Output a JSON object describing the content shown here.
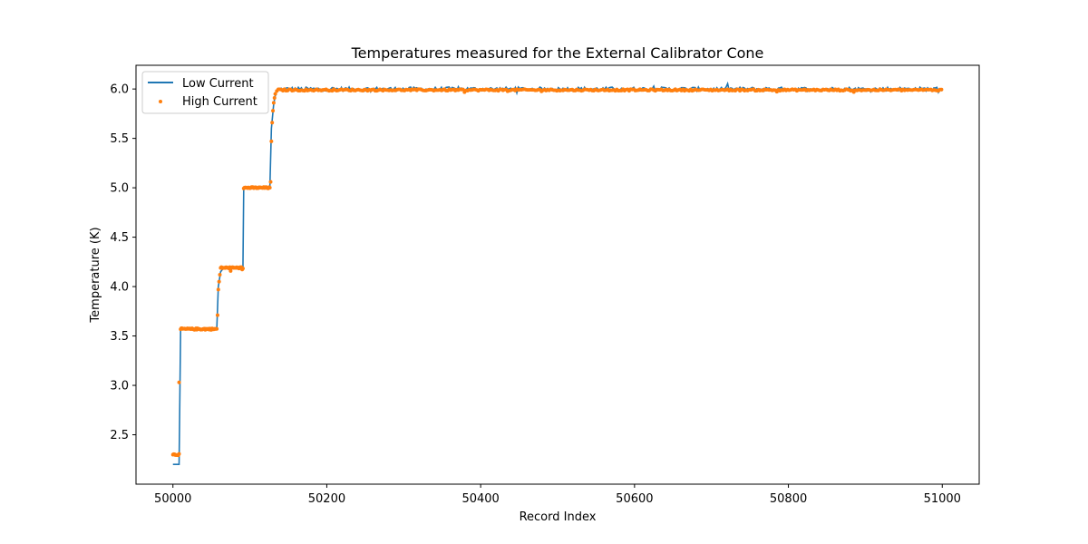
{
  "chart_data": {
    "type": "line",
    "title": "Temperatures measured for the External Calibrator Cone",
    "xlabel": "Record Index",
    "ylabel": "Temperature (K)",
    "xlim": [
      49952,
      51048
    ],
    "ylim": [
      2.0,
      6.24
    ],
    "x_ticks": [
      50000,
      50200,
      50400,
      50600,
      50800,
      51000
    ],
    "y_ticks": [
      2.5,
      3.0,
      3.5,
      4.0,
      4.5,
      5.0,
      5.5,
      6.0
    ],
    "grid": false,
    "legend_position": "upper-left",
    "series": [
      {
        "name": "Low Current",
        "kind": "line",
        "color": "#1f77b4",
        "segments": [
          {
            "x_start": 50000,
            "x_end": 50008,
            "value": 2.2
          },
          {
            "x_start": 50010,
            "x_end": 50057,
            "value": 3.57
          },
          {
            "x_start": 50060,
            "x_end": 50091,
            "value": 4.19
          },
          {
            "x_start": 50092,
            "x_end": 50126,
            "value": 5.0
          },
          {
            "x_start": 50136,
            "x_end": 51000,
            "value": 6.0
          }
        ],
        "points": [
          [
            50000,
            2.2
          ],
          [
            50008,
            2.2
          ],
          [
            50010,
            3.57
          ],
          [
            50057,
            3.57
          ],
          [
            50059,
            4.0
          ],
          [
            50062,
            4.15
          ],
          [
            50066,
            4.19
          ],
          [
            50091,
            4.19
          ],
          [
            50092,
            4.99
          ],
          [
            50126,
            5.0
          ],
          [
            50128,
            5.6
          ],
          [
            50131,
            5.85
          ],
          [
            50134,
            5.97
          ],
          [
            50137,
            6.0
          ],
          [
            51000,
            6.0
          ]
        ],
        "noise_amplitude": 0.02
      },
      {
        "name": "High Current",
        "kind": "scatter",
        "color": "#ff7f0e",
        "segments": [
          {
            "x_start": 50000,
            "x_end": 50008,
            "value": 2.3
          },
          {
            "x_start": 50010,
            "x_end": 50057,
            "value": 3.57
          },
          {
            "x_start": 50062,
            "x_end": 50091,
            "value": 4.19
          },
          {
            "x_start": 50092,
            "x_end": 50126,
            "value": 5.0
          },
          {
            "x_start": 50137,
            "x_end": 51000,
            "value": 5.99
          }
        ],
        "transition_points": [
          [
            50008,
            3.03
          ],
          [
            50058,
            3.71
          ],
          [
            50059,
            3.97
          ],
          [
            50060,
            4.05
          ],
          [
            50061,
            4.12
          ],
          [
            50127,
            5.06
          ],
          [
            50128,
            5.47
          ],
          [
            50129,
            5.66
          ],
          [
            50130,
            5.78
          ],
          [
            50131,
            5.86
          ],
          [
            50132,
            5.91
          ],
          [
            50133,
            5.95
          ],
          [
            50135,
            5.98
          ]
        ],
        "noise_amplitude": 0.008
      }
    ]
  }
}
